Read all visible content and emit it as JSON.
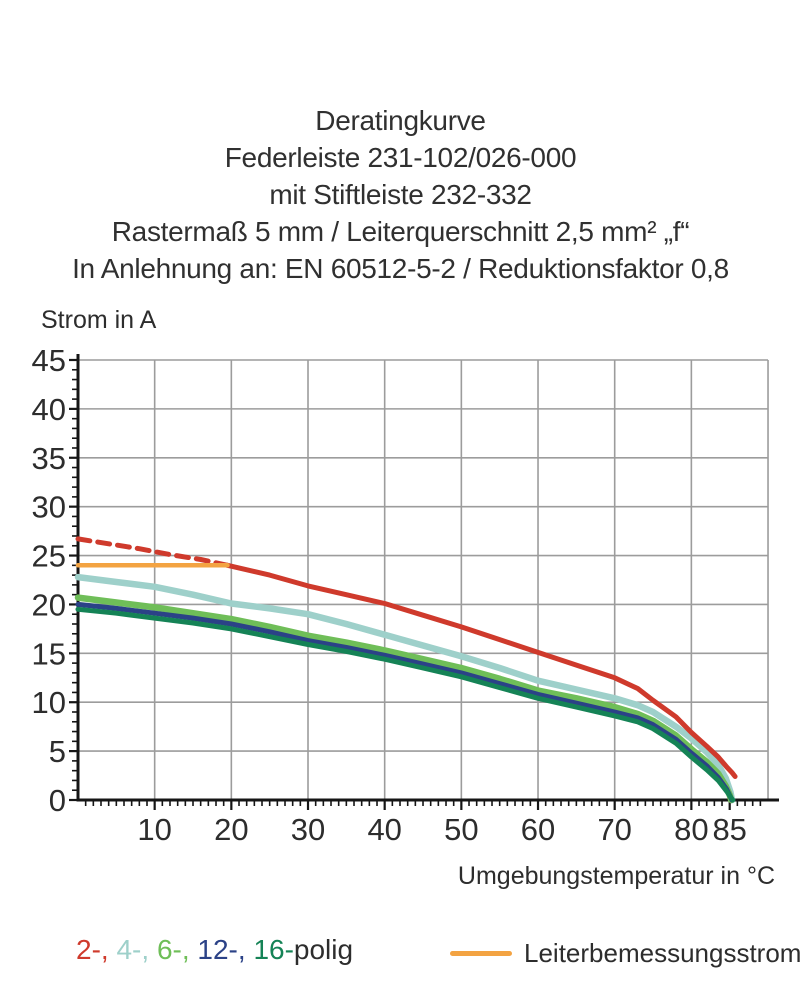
{
  "title": {
    "lines": [
      "Deratingkurve",
      "Federleiste 231-102/026-000",
      "mit Stiftleiste 232-332",
      "Rastermaß 5 mm / Leiterquerschnitt 2,5 mm² „f“",
      "In Anlehnung an: EN 60512-5-2 / Reduktionsfaktor 0,8"
    ]
  },
  "chart_data": {
    "type": "line",
    "title": "Deratingkurve",
    "xlabel": "Umgebungstemperatur in °C",
    "ylabel": "Strom in A",
    "xlim": [
      0,
      90
    ],
    "ylim": [
      0,
      45
    ],
    "x_tick_labels": [
      10,
      20,
      30,
      40,
      50,
      60,
      70,
      80,
      85
    ],
    "y_tick_labels": [
      0,
      5,
      10,
      15,
      20,
      25,
      30,
      35,
      40,
      45
    ],
    "x_gridline_step": 10,
    "y_gridline_step": 5,
    "grid": true,
    "grid_color": "#9c9c9c",
    "axis_color": "#151515",
    "series": [
      {
        "name": "4-polig",
        "color": "#9ed0ca",
        "width": 6.5,
        "points": [
          [
            0,
            22.8
          ],
          [
            5,
            22.3
          ],
          [
            10,
            21.8
          ],
          [
            15,
            21.0
          ],
          [
            20,
            20.1
          ],
          [
            25,
            19.6
          ],
          [
            30,
            19.0
          ],
          [
            35,
            18.0
          ],
          [
            40,
            16.9
          ],
          [
            45,
            15.8
          ],
          [
            50,
            14.7
          ],
          [
            55,
            13.5
          ],
          [
            60,
            12.2
          ],
          [
            65,
            11.3
          ],
          [
            70,
            10.4
          ],
          [
            73,
            9.7
          ],
          [
            75,
            9.0
          ],
          [
            78,
            7.5
          ],
          [
            80,
            6.3
          ],
          [
            82,
            4.9
          ],
          [
            83.5,
            3.6
          ],
          [
            84.5,
            2.2
          ],
          [
            85.1,
            0.8
          ],
          [
            85.3,
            0
          ]
        ]
      },
      {
        "name": "6-polig",
        "color": "#6fbe58",
        "width": 6.5,
        "points": [
          [
            0,
            20.7
          ],
          [
            5,
            20.2
          ],
          [
            10,
            19.7
          ],
          [
            15,
            19.1
          ],
          [
            20,
            18.5
          ],
          [
            25,
            17.7
          ],
          [
            30,
            16.8
          ],
          [
            35,
            16.1
          ],
          [
            40,
            15.3
          ],
          [
            45,
            14.4
          ],
          [
            50,
            13.5
          ],
          [
            55,
            12.4
          ],
          [
            60,
            11.2
          ],
          [
            65,
            10.4
          ],
          [
            70,
            9.5
          ],
          [
            73,
            8.8
          ],
          [
            75,
            8.1
          ],
          [
            78,
            6.6
          ],
          [
            80,
            5.2
          ],
          [
            82,
            3.9
          ],
          [
            83.5,
            2.7
          ],
          [
            84.5,
            1.4
          ],
          [
            85.0,
            0.5
          ],
          [
            85.2,
            0
          ]
        ]
      },
      {
        "name": "12-polig",
        "color": "#2b4287",
        "width": 5,
        "points": [
          [
            0,
            20.0
          ],
          [
            5,
            19.6
          ],
          [
            10,
            19.1
          ],
          [
            15,
            18.6
          ],
          [
            20,
            18.0
          ],
          [
            25,
            17.2
          ],
          [
            30,
            16.3
          ],
          [
            35,
            15.6
          ],
          [
            40,
            14.8
          ],
          [
            45,
            13.9
          ],
          [
            50,
            13.0
          ],
          [
            55,
            11.9
          ],
          [
            60,
            10.8
          ],
          [
            65,
            9.9
          ],
          [
            70,
            9.0
          ],
          [
            73,
            8.4
          ],
          [
            75,
            7.7
          ],
          [
            78,
            6.2
          ],
          [
            80,
            4.8
          ],
          [
            82,
            3.5
          ],
          [
            83.5,
            2.3
          ],
          [
            84.6,
            1.1
          ],
          [
            85.1,
            0.3
          ],
          [
            85.3,
            0
          ]
        ]
      },
      {
        "name": "16-polig",
        "color": "#158356",
        "width": 5,
        "points": [
          [
            0,
            19.5
          ],
          [
            5,
            19.1
          ],
          [
            10,
            18.6
          ],
          [
            15,
            18.1
          ],
          [
            20,
            17.5
          ],
          [
            25,
            16.7
          ],
          [
            30,
            15.9
          ],
          [
            35,
            15.2
          ],
          [
            40,
            14.4
          ],
          [
            45,
            13.5
          ],
          [
            50,
            12.6
          ],
          [
            55,
            11.5
          ],
          [
            60,
            10.4
          ],
          [
            65,
            9.5
          ],
          [
            70,
            8.6
          ],
          [
            73,
            8.0
          ],
          [
            75,
            7.3
          ],
          [
            78,
            5.8
          ],
          [
            80,
            4.4
          ],
          [
            82,
            3.1
          ],
          [
            83.5,
            2.0
          ],
          [
            84.7,
            0.8
          ],
          [
            85.2,
            0.2
          ],
          [
            85.4,
            0
          ]
        ]
      },
      {
        "name": "2-polig",
        "color": "#cf3a2c",
        "width": 5,
        "dashed_until_x": 19.5,
        "dash": "12 8",
        "points": [
          [
            0,
            26.7
          ],
          [
            4,
            26.2
          ],
          [
            8,
            25.7
          ],
          [
            12,
            25.1
          ],
          [
            16,
            24.6
          ],
          [
            19.5,
            24.0
          ],
          [
            25,
            23.0
          ],
          [
            30,
            21.9
          ],
          [
            35,
            21.0
          ],
          [
            40,
            20.1
          ],
          [
            45,
            18.9
          ],
          [
            50,
            17.7
          ],
          [
            55,
            16.4
          ],
          [
            60,
            15.1
          ],
          [
            65,
            13.8
          ],
          [
            70,
            12.5
          ],
          [
            73,
            11.4
          ],
          [
            75,
            10.2
          ],
          [
            78,
            8.5
          ],
          [
            80,
            6.9
          ],
          [
            82,
            5.5
          ],
          [
            83.5,
            4.4
          ],
          [
            84.7,
            3.3
          ],
          [
            85.3,
            2.8
          ],
          [
            85.7,
            2.4
          ]
        ]
      },
      {
        "name": "Leiterbemessungsstrom",
        "color": "#f3a342",
        "width": 4.5,
        "points": [
          [
            0,
            24
          ],
          [
            19.5,
            24
          ]
        ]
      }
    ]
  },
  "legend": {
    "poles": {
      "items": [
        {
          "text": "2-, ",
          "color": "#cf3a2c"
        },
        {
          "text": "4-, ",
          "color": "#9ed0ca"
        },
        {
          "text": "6-, ",
          "color": "#6fbe58"
        },
        {
          "text": "12-, ",
          "color": "#2b4287"
        },
        {
          "text": "16-",
          "color": "#158356"
        }
      ],
      "suffix": "polig"
    },
    "rated": {
      "label": "Leiterbemessungsstrom",
      "color": "#f3a342"
    }
  }
}
